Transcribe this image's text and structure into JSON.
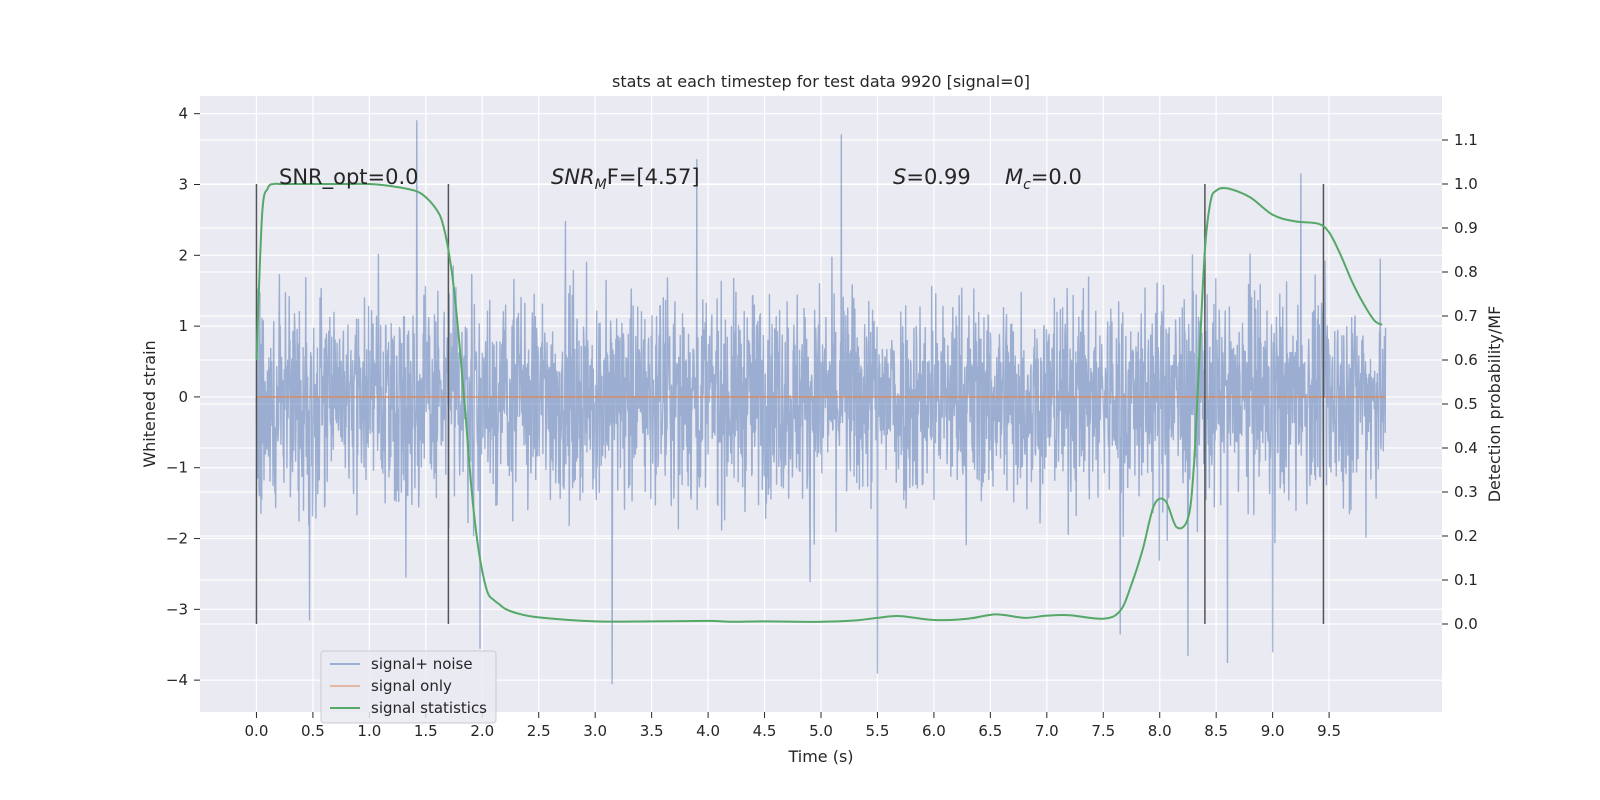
{
  "chart_data": {
    "type": "line",
    "title": "stats at each timestep for test data 9920 [signal=0]",
    "xlabel": "Time (s)",
    "ylabel": "Whitened strain",
    "y2label": "Detection probability/MF",
    "xlim": [
      -0.5,
      10.5
    ],
    "ylim": [
      -4.45,
      4.25
    ],
    "y2lim": [
      -0.2,
      1.2
    ],
    "x_ticks": [
      "0.0",
      "0.5",
      "1.0",
      "1.5",
      "2.0",
      "2.5",
      "3.0",
      "3.5",
      "4.0",
      "4.5",
      "5.0",
      "5.5",
      "6.0",
      "6.5",
      "7.0",
      "7.5",
      "8.0",
      "8.5",
      "9.0",
      "9.5"
    ],
    "y_ticks": [
      "4",
      "3",
      "2",
      "1",
      "0",
      "−1",
      "−2",
      "−3",
      "−4"
    ],
    "y2_ticks": [
      "1.1",
      "1.0",
      "0.9",
      "0.8",
      "0.7",
      "0.6",
      "0.5",
      "0.4",
      "0.3",
      "0.2",
      "0.1",
      "0.0"
    ],
    "grid": true,
    "legend_position": "lower-left",
    "annotations": {
      "snr_opt": "SNR_opt=0.0",
      "snr_mf_prefix": "SNR",
      "snr_mf_sub": "M",
      "snr_mf_suffix": "F=[4.57]",
      "s_prefix": "S",
      "s_value": "=0.99",
      "mc_prefix": "M",
      "mc_sub": "c",
      "mc_value": "=0.0"
    },
    "vertical_markers": [
      0.0,
      1.7,
      8.4,
      9.45
    ],
    "series": [
      {
        "name": "signal+ noise",
        "color": "#4c72b0",
        "axis": "left",
        "kind": "noise",
        "x_range": [
          0.0,
          10.0
        ],
        "y_range": [
          -4.05,
          3.9
        ],
        "peaks": [
          {
            "x": 1.42,
            "y": 3.9
          },
          {
            "x": 5.18,
            "y": 3.7
          },
          {
            "x": 0.47,
            "y": -3.15
          },
          {
            "x": 1.98,
            "y": -3.55
          },
          {
            "x": 3.15,
            "y": -4.05
          },
          {
            "x": 5.5,
            "y": -3.9
          },
          {
            "x": 8.25,
            "y": -3.65
          },
          {
            "x": 8.6,
            "y": -3.75
          },
          {
            "x": 9.0,
            "y": -3.6
          },
          {
            "x": 7.65,
            "y": -3.35
          },
          {
            "x": 3.9,
            "y": 3.35
          },
          {
            "x": 9.25,
            "y": 3.15
          }
        ]
      },
      {
        "name": "signal only",
        "color": "#dd8452",
        "axis": "left",
        "x": [
          0.0,
          10.0
        ],
        "y": [
          0.0,
          0.0
        ]
      },
      {
        "name": "signal statistics",
        "color": "#55a868",
        "axis": "right",
        "x": [
          0.0,
          0.05,
          0.1,
          0.15,
          0.2,
          0.3,
          0.5,
          0.8,
          1.0,
          1.2,
          1.4,
          1.5,
          1.6,
          1.65,
          1.7,
          1.75,
          1.8,
          1.85,
          1.9,
          1.95,
          2.0,
          2.05,
          2.1,
          2.15,
          2.2,
          2.3,
          2.5,
          3.0,
          3.5,
          4.0,
          4.2,
          4.5,
          5.0,
          5.3,
          5.5,
          5.7,
          6.0,
          6.3,
          6.55,
          6.8,
          7.0,
          7.2,
          7.5,
          7.65,
          7.75,
          7.85,
          7.95,
          8.05,
          8.15,
          8.25,
          8.3,
          8.35,
          8.4,
          8.45,
          8.5,
          8.6,
          8.8,
          9.0,
          9.2,
          9.4,
          9.5,
          9.6,
          9.7,
          9.8,
          9.9,
          9.97
        ],
        "y": [
          0.6,
          0.93,
          0.99,
          1.0,
          1.0,
          1.0,
          1.0,
          1.0,
          1.0,
          0.995,
          0.985,
          0.97,
          0.94,
          0.91,
          0.85,
          0.76,
          0.63,
          0.48,
          0.32,
          0.2,
          0.12,
          0.07,
          0.055,
          0.045,
          0.035,
          0.025,
          0.015,
          0.006,
          0.006,
          0.007,
          0.005,
          0.006,
          0.005,
          0.008,
          0.014,
          0.018,
          0.009,
          0.012,
          0.022,
          0.014,
          0.019,
          0.02,
          0.012,
          0.03,
          0.09,
          0.17,
          0.27,
          0.28,
          0.22,
          0.24,
          0.35,
          0.6,
          0.85,
          0.96,
          0.985,
          0.99,
          0.97,
          0.93,
          0.915,
          0.91,
          0.89,
          0.84,
          0.78,
          0.73,
          0.69,
          0.68
        ]
      }
    ]
  }
}
